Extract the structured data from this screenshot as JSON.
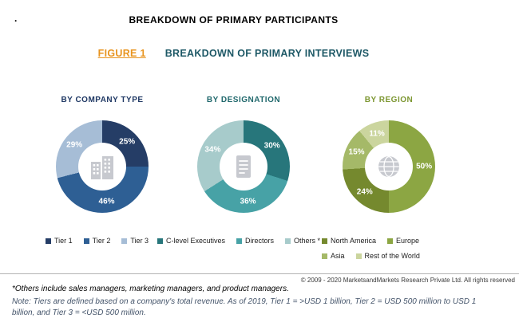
{
  "page": {
    "background": "#FFFFFF",
    "stray_mark": "."
  },
  "header": {
    "main_title": "BREAKDOWN OF PRIMARY PARTICIPANTS",
    "figure_label": "FIGURE 1",
    "figure_label_color": "#E8941F",
    "figure_title": "BREAKDOWN OF PRIMARY INTERVIEWS",
    "figure_title_color": "#1D5866"
  },
  "chart_data": [
    {
      "type": "pie",
      "variant": "donut",
      "title": "BY COMPANY TYPE",
      "title_color": "#1F3864",
      "center_icon": "building-icon",
      "hole_ratio": 0.52,
      "labels_format": "percent",
      "legend_position": "below",
      "slices": [
        {
          "label": "Tier 1",
          "value": 25,
          "color": "#253D66"
        },
        {
          "label": "Tier 2",
          "value": 46,
          "color": "#2E5F94"
        },
        {
          "label": "Tier 3",
          "value": 29,
          "color": "#A6BDD6"
        }
      ],
      "legend_rows": [
        [
          {
            "label": "Tier 1",
            "color": "#253D66"
          },
          {
            "label": "Tier 2",
            "color": "#2E5F94"
          },
          {
            "label": "Tier 3",
            "color": "#A6BDD6"
          }
        ]
      ]
    },
    {
      "type": "pie",
      "variant": "donut",
      "title": "BY DESIGNATION",
      "title_color": "#20686C",
      "center_icon": "survey-document-icon",
      "hole_ratio": 0.52,
      "labels_format": "percent",
      "legend_position": "below",
      "slices": [
        {
          "label": "C-level Executives",
          "value": 30,
          "color": "#27767B"
        },
        {
          "label": "Directors",
          "value": 36,
          "color": "#47A2A6"
        },
        {
          "label": "Others *",
          "value": 34,
          "color": "#A7CBCB"
        }
      ],
      "legend_rows": [
        [
          {
            "label": "C-level Executives",
            "color": "#27767B"
          },
          {
            "label": "Directors",
            "color": "#47A2A6"
          },
          {
            "label": "Others *",
            "color": "#A7CBCB"
          }
        ]
      ]
    },
    {
      "type": "pie",
      "variant": "donut",
      "title": "BY REGION",
      "title_color": "#7D9732",
      "center_icon": "globe-icon",
      "hole_ratio": 0.52,
      "labels_format": "percent",
      "legend_position": "below",
      "slices": [
        {
          "label": "Europe",
          "value": 50,
          "color": "#8CA643"
        },
        {
          "label": "North America",
          "value": 24,
          "color": "#75892E"
        },
        {
          "label": "Asia",
          "value": 15,
          "color": "#A5B968"
        },
        {
          "label": "Rest of the World",
          "value": 11,
          "color": "#CBD59E"
        }
      ],
      "legend_rows": [
        [
          {
            "label": "North America",
            "color": "#75892E"
          },
          {
            "label": "Europe",
            "color": "#8CA643"
          }
        ],
        [
          {
            "label": "Asia",
            "color": "#A5B968"
          },
          {
            "label": "Rest of the World",
            "color": "#CBD59E"
          }
        ]
      ]
    }
  ],
  "footer": {
    "copyright": "© 2009 - 2020 MarketsandMarkets Research Private Ltd. All rights reserved",
    "others_footnote": "*Others include sales managers, marketing managers, and product managers.",
    "note": "Note: Tiers are defined based on a company's total revenue. As of 2019, Tier 1 = >USD 1 billion, Tier 2 = USD 500 million to USD 1 billion, and Tier 3 = <USD 500 million."
  }
}
